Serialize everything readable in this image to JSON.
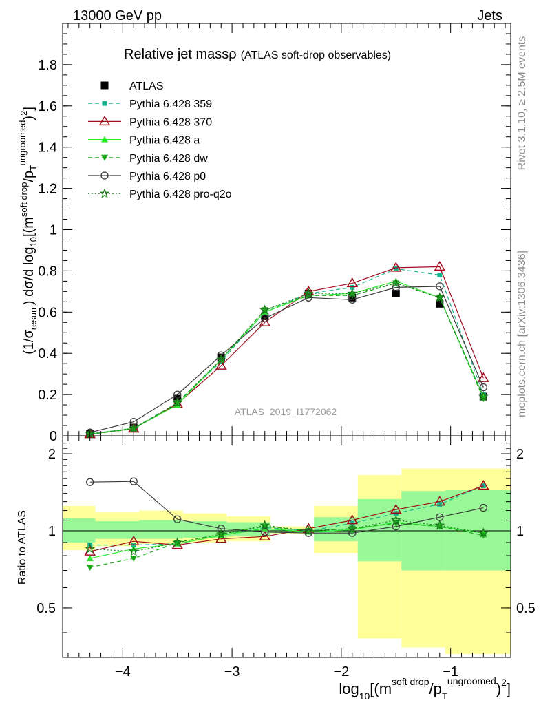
{
  "header": {
    "energy_label": "13000 GeV pp",
    "process_label": "Jets",
    "rivet_label": "Rivet 3.1.10, ≥ 2.5M events",
    "mcplots_label": "mcplots.cern.ch [arXiv:1306.3436]",
    "analysis_label": "ATLAS_2019_I1772062"
  },
  "chart_data": [
    {
      "type": "line",
      "title": "Relative jet massρ",
      "subtitle": "(ATLAS soft-drop observables)",
      "xlabel": "log10[(m^{soft drop}/p_T^{ungroomed})^2]",
      "ylabel": "(1/σresum) dσ/d log10[(m^{soft drop}/p_T^{ungroomed})^2]",
      "xlim": [
        -4.55,
        -0.45
      ],
      "ylim": [
        0,
        2.0
      ],
      "yticks": [
        0,
        0.2,
        0.4,
        0.6,
        0.8,
        1,
        1.2,
        1.4,
        1.6,
        1.8
      ],
      "ytick_labels": [
        "0",
        "0.2",
        "0.4",
        "0.6",
        "0.8",
        "1",
        "1.2",
        "1.4",
        "1.6",
        "1.8"
      ],
      "xticks": [
        -4,
        -3,
        -2,
        -1
      ],
      "xtick_labels": [
        "−4",
        "−3",
        "−2",
        "−1"
      ],
      "x": [
        -4.3,
        -3.9,
        -3.5,
        -3.1,
        -2.7,
        -2.3,
        -1.9,
        -1.5,
        -1.1,
        -0.7
      ],
      "legend_position": "top-left",
      "grid": false,
      "series": [
        {
          "name": "ATLAS",
          "color": "#000000",
          "marker": "square",
          "dash": "none",
          "values": [
            0.01,
            0.04,
            0.18,
            0.38,
            0.58,
            0.69,
            0.67,
            0.69,
            0.64,
            0.19
          ]
        },
        {
          "name": "Pythia 6.428 359",
          "color": "#1bb38f",
          "marker": "square-small",
          "dash": "dashed",
          "values": [
            0.009,
            0.037,
            0.16,
            0.36,
            0.6,
            0.69,
            0.72,
            0.81,
            0.78,
            0.2
          ]
        },
        {
          "name": "Pythia 6.428 370",
          "color": "#a00e1e",
          "marker": "triangle-open",
          "dash": "solid",
          "values": [
            0.008,
            0.035,
            0.155,
            0.34,
            0.55,
            0.7,
            0.74,
            0.815,
            0.82,
            0.28
          ]
        },
        {
          "name": "Pythia 6.428 a",
          "color": "#2ee82e",
          "marker": "triangle",
          "dash": "solid",
          "values": [
            0.008,
            0.036,
            0.15,
            0.37,
            0.6,
            0.68,
            0.69,
            0.75,
            0.67,
            0.19
          ]
        },
        {
          "name": "Pythia 6.428 dw",
          "color": "#1aa81a",
          "marker": "triangle-down",
          "dash": "dashed",
          "values": [
            0.007,
            0.033,
            0.16,
            0.37,
            0.61,
            0.68,
            0.68,
            0.74,
            0.67,
            0.18
          ]
        },
        {
          "name": "Pythia 6.428 p0",
          "color": "#3a3a3a",
          "marker": "circle-open",
          "dash": "solid",
          "values": [
            0.016,
            0.068,
            0.2,
            0.39,
            0.57,
            0.67,
            0.66,
            0.72,
            0.725,
            0.235
          ]
        },
        {
          "name": "Pythia 6.428 pro-q2o",
          "color": "#1a7a1a",
          "marker": "star",
          "dash": "dotted",
          "values": [
            0.009,
            0.036,
            0.16,
            0.37,
            0.61,
            0.69,
            0.69,
            0.74,
            0.67,
            0.19
          ]
        }
      ]
    },
    {
      "type": "line",
      "ylabel": "Ratio to ATLAS",
      "ylim": [
        0.32,
        2.35
      ],
      "yticks": [
        0.5,
        1,
        2
      ],
      "ytick_labels": [
        "0.5",
        "1",
        "2"
      ],
      "reference_line": 1,
      "bands": {
        "edges": [
          -4.55,
          -4.25,
          -3.85,
          -3.45,
          -3.05,
          -2.65,
          -2.25,
          -1.85,
          -1.45,
          -1.05,
          -0.45
        ],
        "yellow_lo": [
          0.84,
          0.87,
          0.89,
          0.9,
          0.91,
          0.97,
          0.82,
          0.38,
          0.35,
          0.33
        ],
        "yellow_hi": [
          1.25,
          1.18,
          1.2,
          1.17,
          1.14,
          1.04,
          1.25,
          1.65,
          1.75,
          1.75
        ],
        "green_lo": [
          0.9,
          0.93,
          0.93,
          0.94,
          0.95,
          0.98,
          0.91,
          0.76,
          0.7,
          0.7
        ],
        "green_hi": [
          1.12,
          1.09,
          1.1,
          1.09,
          1.08,
          1.02,
          1.13,
          1.33,
          1.43,
          1.44
        ]
      },
      "series": [
        {
          "name": "Pythia 6.428 359",
          "values": [
            0.88,
            0.88,
            0.89,
            0.96,
            1.03,
            1.0,
            1.07,
            1.17,
            1.27,
            1.5
          ]
        },
        {
          "name": "Pythia 6.428 370",
          "values": [
            0.83,
            0.91,
            0.88,
            0.93,
            0.95,
            1.02,
            1.1,
            1.21,
            1.3,
            1.5
          ]
        },
        {
          "name": "Pythia 6.428 a",
          "values": [
            0.78,
            0.85,
            0.89,
            0.96,
            1.02,
            0.99,
            1.01,
            1.08,
            1.04,
            0.98
          ]
        },
        {
          "name": "Pythia 6.428 dw",
          "values": [
            0.72,
            0.78,
            0.9,
            0.97,
            1.04,
            1.0,
            1.02,
            1.07,
            1.04,
            0.96
          ]
        },
        {
          "name": "Pythia 6.428 p0",
          "values": [
            1.55,
            1.56,
            1.11,
            1.02,
            0.99,
            0.98,
            0.98,
            1.04,
            1.13,
            1.23
          ]
        },
        {
          "name": "Pythia 6.428 pro-q2o",
          "values": [
            0.85,
            0.83,
            0.9,
            0.97,
            1.05,
            1.0,
            1.02,
            1.1,
            1.05,
            0.98
          ]
        }
      ]
    }
  ]
}
